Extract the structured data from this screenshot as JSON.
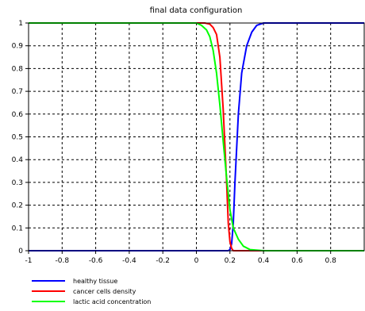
{
  "chart_data": {
    "type": "line",
    "title": "final data configuration",
    "xlabel": "",
    "ylabel": "",
    "xlim": [
      -1,
      1
    ],
    "ylim": [
      0,
      1
    ],
    "x_ticks": [
      -1,
      -0.8,
      -0.6,
      -0.4,
      -0.2,
      0,
      0.2,
      0.4,
      0.6,
      0.8
    ],
    "x_tick_labels": [
      "-1",
      "-0.8",
      "-0.6",
      "-0.4",
      "-0.2",
      "0",
      "0.2",
      "0.4",
      "0.6",
      "0.8"
    ],
    "y_ticks": [
      0,
      0.1,
      0.2,
      0.3,
      0.4,
      0.5,
      0.6,
      0.7,
      0.8,
      0.9,
      1
    ],
    "y_tick_labels": [
      "0",
      "0.1",
      "0.2",
      "0.3",
      "0.4",
      "0.5",
      "0.6",
      "0.7",
      "0.8",
      "0.9",
      "1"
    ],
    "grid": true,
    "legend_position": "bottom-left, below plot",
    "series": [
      {
        "name": "healthy tissue",
        "color": "#0000ff",
        "x": [
          -1,
          0.15,
          0.19,
          0.2,
          0.21,
          0.22,
          0.23,
          0.25,
          0.27,
          0.3,
          0.33,
          0.36,
          0.4,
          0.45,
          1.0
        ],
        "y": [
          0,
          0,
          0,
          0.005,
          0.03,
          0.12,
          0.3,
          0.6,
          0.78,
          0.9,
          0.96,
          0.99,
          1.0,
          1.0,
          1.0
        ]
      },
      {
        "name": "cancer cells density",
        "color": "#ff0000",
        "x": [
          -1,
          0.05,
          0.08,
          0.1,
          0.12,
          0.14,
          0.16,
          0.18,
          0.19,
          0.2,
          0.21,
          0.22,
          0.25,
          1.0
        ],
        "y": [
          1,
          1,
          0.995,
          0.98,
          0.95,
          0.85,
          0.62,
          0.3,
          0.12,
          0.04,
          0.01,
          0,
          0,
          0
        ]
      },
      {
        "name": "lactic acid concentration",
        "color": "#00ff00",
        "x": [
          -1,
          0.0,
          0.03,
          0.06,
          0.08,
          0.1,
          0.12,
          0.14,
          0.16,
          0.18,
          0.2,
          0.22,
          0.25,
          0.28,
          0.32,
          0.4,
          1.0
        ],
        "y": [
          1,
          1,
          0.99,
          0.97,
          0.94,
          0.88,
          0.78,
          0.64,
          0.48,
          0.32,
          0.18,
          0.1,
          0.05,
          0.02,
          0.005,
          0,
          0
        ]
      }
    ]
  }
}
